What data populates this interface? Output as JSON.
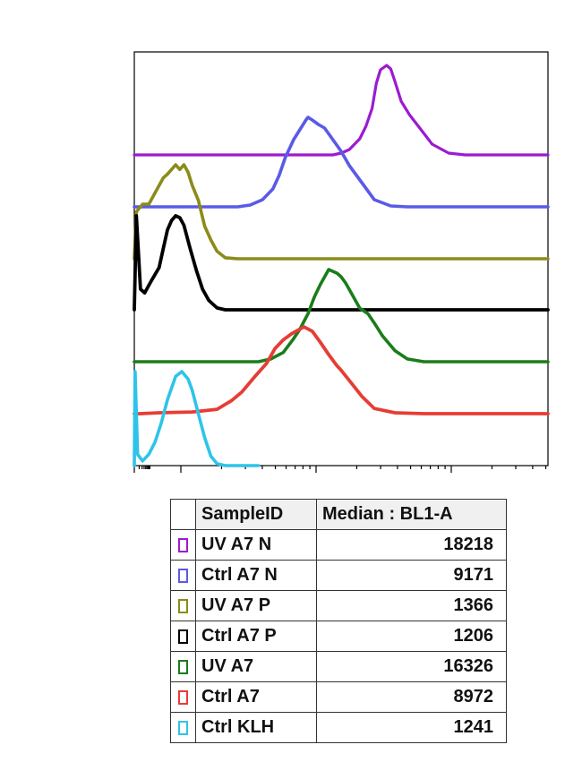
{
  "chart_data": {
    "type": "area",
    "title": "",
    "xlabel": "",
    "ylabel": "",
    "x_scale": "log",
    "legend_placement": "bottom",
    "table_headers": [
      "SampleID",
      "Median : BL1-A"
    ],
    "series": [
      {
        "name": "UV A7 N",
        "color": "#9b1bd0",
        "median": "18218",
        "points": [
          [
            0,
            0
          ],
          [
            0.48,
            0
          ],
          [
            0.5,
            0.02
          ],
          [
            0.52,
            0.06
          ],
          [
            0.545,
            0.18
          ],
          [
            0.56,
            0.32
          ],
          [
            0.575,
            0.52
          ],
          [
            0.585,
            0.8
          ],
          [
            0.595,
            0.95
          ],
          [
            0.61,
            1.0
          ],
          [
            0.62,
            0.96
          ],
          [
            0.63,
            0.82
          ],
          [
            0.645,
            0.6
          ],
          [
            0.665,
            0.45
          ],
          [
            0.69,
            0.3
          ],
          [
            0.72,
            0.12
          ],
          [
            0.76,
            0.02
          ],
          [
            0.8,
            0
          ],
          [
            1,
            0
          ]
        ]
      },
      {
        "name": "Ctrl A7 N",
        "color": "#5a5ae6",
        "median": "9171",
        "points": [
          [
            0,
            0
          ],
          [
            0.25,
            0
          ],
          [
            0.28,
            0.02
          ],
          [
            0.31,
            0.08
          ],
          [
            0.335,
            0.2
          ],
          [
            0.35,
            0.35
          ],
          [
            0.365,
            0.55
          ],
          [
            0.385,
            0.75
          ],
          [
            0.4,
            0.86
          ],
          [
            0.415,
            0.97
          ],
          [
            0.42,
            1.0
          ],
          [
            0.43,
            0.97
          ],
          [
            0.445,
            0.92
          ],
          [
            0.46,
            0.88
          ],
          [
            0.48,
            0.75
          ],
          [
            0.5,
            0.62
          ],
          [
            0.52,
            0.46
          ],
          [
            0.55,
            0.27
          ],
          [
            0.58,
            0.08
          ],
          [
            0.62,
            0.01
          ],
          [
            0.66,
            0
          ],
          [
            1,
            0
          ]
        ]
      },
      {
        "name": "UV A7 P",
        "color": "#8b8b1a",
        "median": "1366",
        "points": [
          [
            0,
            0
          ],
          [
            0.005,
            0.5
          ],
          [
            0.02,
            0.58
          ],
          [
            0.035,
            0.58
          ],
          [
            0.05,
            0.7
          ],
          [
            0.07,
            0.86
          ],
          [
            0.08,
            0.9
          ],
          [
            0.09,
            0.95
          ],
          [
            0.1,
            1.0
          ],
          [
            0.11,
            0.95
          ],
          [
            0.12,
            1.0
          ],
          [
            0.13,
            0.92
          ],
          [
            0.14,
            0.78
          ],
          [
            0.155,
            0.62
          ],
          [
            0.17,
            0.35
          ],
          [
            0.185,
            0.2
          ],
          [
            0.2,
            0.08
          ],
          [
            0.22,
            0.01
          ],
          [
            0.25,
            0
          ],
          [
            1,
            0
          ]
        ]
      },
      {
        "name": "Ctrl A7 P",
        "color": "#000000",
        "median": "1206",
        "points": [
          [
            0,
            0
          ],
          [
            0.005,
            1.0
          ],
          [
            0.015,
            0.22
          ],
          [
            0.025,
            0.18
          ],
          [
            0.04,
            0.3
          ],
          [
            0.06,
            0.45
          ],
          [
            0.07,
            0.65
          ],
          [
            0.08,
            0.85
          ],
          [
            0.09,
            0.95
          ],
          [
            0.1,
            1.0
          ],
          [
            0.11,
            0.98
          ],
          [
            0.12,
            0.9
          ],
          [
            0.135,
            0.65
          ],
          [
            0.15,
            0.42
          ],
          [
            0.165,
            0.22
          ],
          [
            0.18,
            0.1
          ],
          [
            0.2,
            0.02
          ],
          [
            0.22,
            0
          ],
          [
            1,
            0
          ]
        ]
      },
      {
        "name": "UV A7",
        "color": "#1a7d1a",
        "median": "16326",
        "points": [
          [
            0,
            0
          ],
          [
            0.3,
            0
          ],
          [
            0.33,
            0.03
          ],
          [
            0.36,
            0.1
          ],
          [
            0.385,
            0.25
          ],
          [
            0.4,
            0.35
          ],
          [
            0.42,
            0.52
          ],
          [
            0.435,
            0.7
          ],
          [
            0.45,
            0.84
          ],
          [
            0.46,
            0.92
          ],
          [
            0.47,
            1.0
          ],
          [
            0.48,
            0.98
          ],
          [
            0.49,
            0.96
          ],
          [
            0.5,
            0.92
          ],
          [
            0.51,
            0.86
          ],
          [
            0.525,
            0.74
          ],
          [
            0.545,
            0.58
          ],
          [
            0.565,
            0.52
          ],
          [
            0.58,
            0.42
          ],
          [
            0.6,
            0.28
          ],
          [
            0.63,
            0.12
          ],
          [
            0.66,
            0.03
          ],
          [
            0.7,
            0
          ],
          [
            1,
            0
          ]
        ]
      },
      {
        "name": "Ctrl A7",
        "color": "#e53d35",
        "median": "8972",
        "points": [
          [
            0,
            0
          ],
          [
            0.015,
            0
          ],
          [
            0.06,
            0.01
          ],
          [
            0.14,
            0.02
          ],
          [
            0.2,
            0.05
          ],
          [
            0.235,
            0.15
          ],
          [
            0.26,
            0.25
          ],
          [
            0.29,
            0.42
          ],
          [
            0.32,
            0.58
          ],
          [
            0.34,
            0.75
          ],
          [
            0.36,
            0.85
          ],
          [
            0.38,
            0.92
          ],
          [
            0.41,
            1.0
          ],
          [
            0.43,
            0.95
          ],
          [
            0.45,
            0.82
          ],
          [
            0.47,
            0.68
          ],
          [
            0.49,
            0.55
          ],
          [
            0.5,
            0.5
          ],
          [
            0.52,
            0.38
          ],
          [
            0.55,
            0.2
          ],
          [
            0.58,
            0.06
          ],
          [
            0.63,
            0.01
          ],
          [
            0.7,
            0
          ],
          [
            1,
            0
          ]
        ]
      },
      {
        "name": "Ctrl KLH",
        "color": "#2ec4ea",
        "median": "1241",
        "points": [
          [
            0,
            0
          ],
          [
            0.002,
            1.0
          ],
          [
            0.008,
            0.12
          ],
          [
            0.02,
            0.05
          ],
          [
            0.035,
            0.12
          ],
          [
            0.05,
            0.25
          ],
          [
            0.065,
            0.45
          ],
          [
            0.08,
            0.7
          ],
          [
            0.1,
            0.95
          ],
          [
            0.115,
            1.0
          ],
          [
            0.13,
            0.92
          ],
          [
            0.14,
            0.8
          ],
          [
            0.155,
            0.55
          ],
          [
            0.17,
            0.3
          ],
          [
            0.185,
            0.1
          ],
          [
            0.2,
            0.02
          ],
          [
            0.22,
            0
          ],
          [
            0.3,
            0
          ]
        ]
      }
    ]
  }
}
